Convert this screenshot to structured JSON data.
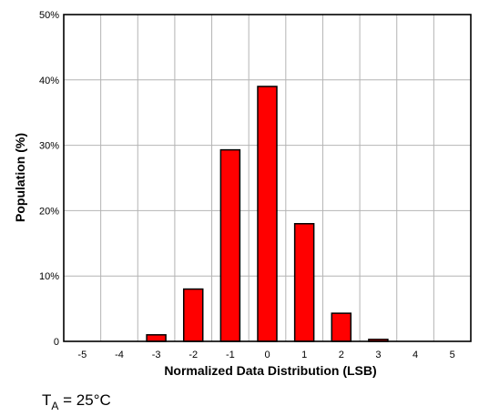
{
  "chart_data": {
    "type": "bar",
    "categories": [
      "-5",
      "-4",
      "-3",
      "-2",
      "-1",
      "0",
      "1",
      "2",
      "3",
      "4",
      "5"
    ],
    "values": [
      0,
      0,
      1.0,
      8.0,
      29.3,
      39.0,
      18.0,
      4.3,
      0.3,
      0,
      0
    ],
    "title": "",
    "xlabel": "Normalized Data Distribution (LSB)",
    "ylabel": "Population (%)",
    "ylim": [
      0,
      50
    ],
    "yticks": [
      0,
      10,
      20,
      30,
      40,
      50
    ],
    "ytick_labels": [
      "0",
      "10%",
      "20%",
      "30%",
      "40%",
      "50%"
    ],
    "grid": true,
    "bar_color": "#ff0000",
    "annotation": {
      "prefix": "T",
      "subscript": "A",
      "suffix": " = 25°C"
    }
  }
}
